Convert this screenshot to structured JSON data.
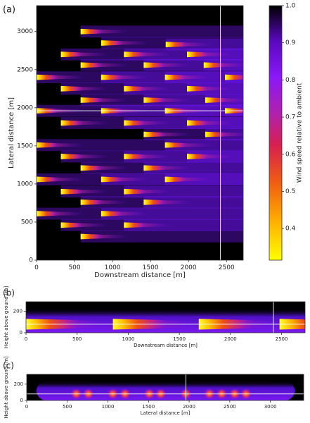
{
  "chart_data": [
    {
      "type": "wake-plan",
      "label": "(a)",
      "xlabel": "Downstream distance [m]",
      "ylabel": "Lateral distance [m]",
      "xlim": [
        0,
        2720
      ],
      "ylim": [
        0,
        3340
      ],
      "xticks": [
        0,
        500,
        1000,
        1500,
        2000,
        2500
      ],
      "yticks": [
        0,
        500,
        1000,
        1500,
        2000,
        2500,
        3000
      ],
      "x": [
        580,
        850,
        1700,
        320,
        1150,
        1980,
        580,
        1410,
        2200,
        0,
        850,
        1690,
        2480,
        320,
        1150,
        1980,
        580,
        1410,
        2220,
        0,
        850,
        1690,
        2480,
        320,
        1150,
        1980,
        1410,
        2220,
        0,
        1690,
        320,
        1150,
        1980,
        580,
        1410,
        0,
        850,
        1690,
        320,
        1150,
        580,
        1410,
        0,
        850,
        320,
        1150,
        580
      ],
      "y": [
        3000,
        2850,
        2830,
        2700,
        2700,
        2700,
        2560,
        2560,
        2560,
        2400,
        2400,
        2400,
        2400,
        2250,
        2250,
        2250,
        2100,
        2100,
        2100,
        1960,
        1960,
        1960,
        1960,
        1800,
        1800,
        1800,
        1650,
        1650,
        1510,
        1510,
        1360,
        1360,
        1360,
        1210,
        1210,
        1060,
        1060,
        1060,
        900,
        900,
        760,
        760,
        610,
        610,
        460,
        460,
        310
      ],
      "vline": 2420,
      "hline": 1960
    },
    {
      "type": "wake-side",
      "label": "(b)",
      "xlabel": "Downstream distance [m]",
      "ylabel": "Height above ground [m]",
      "xlim": [
        0,
        2730
      ],
      "ylim": [
        0,
        290
      ],
      "xticks": [
        0,
        500,
        1000,
        1500,
        2000,
        2500
      ],
      "yticks": [
        0,
        200
      ],
      "x": [
        0,
        850,
        1690,
        2480
      ],
      "vline": 2420,
      "hline": 80
    },
    {
      "type": "wake-cross",
      "label": "(c)",
      "xlabel": "Lateral distance [m]",
      "ylabel": "Height above ground [m]",
      "xlim": [
        0,
        3410
      ],
      "ylim": [
        0,
        320
      ],
      "xticks": [
        0,
        500,
        1000,
        1500,
        2000,
        2500,
        3000
      ],
      "yticks": [
        0,
        200
      ],
      "x": [
        610,
        760,
        1060,
        1210,
        1510,
        1650,
        1960,
        2250,
        2400,
        2560,
        2700
      ],
      "vline": 1960,
      "hline": 80
    },
    {
      "type": "colorbar",
      "ylabel": "Wind speed relative to ambient",
      "ylim": [
        0.315,
        1.0
      ],
      "yticks": [
        0.4,
        0.5,
        0.6,
        0.7,
        0.8,
        0.9,
        {
          "value": 1.0,
          "label": "1.0"
        }
      ]
    }
  ]
}
